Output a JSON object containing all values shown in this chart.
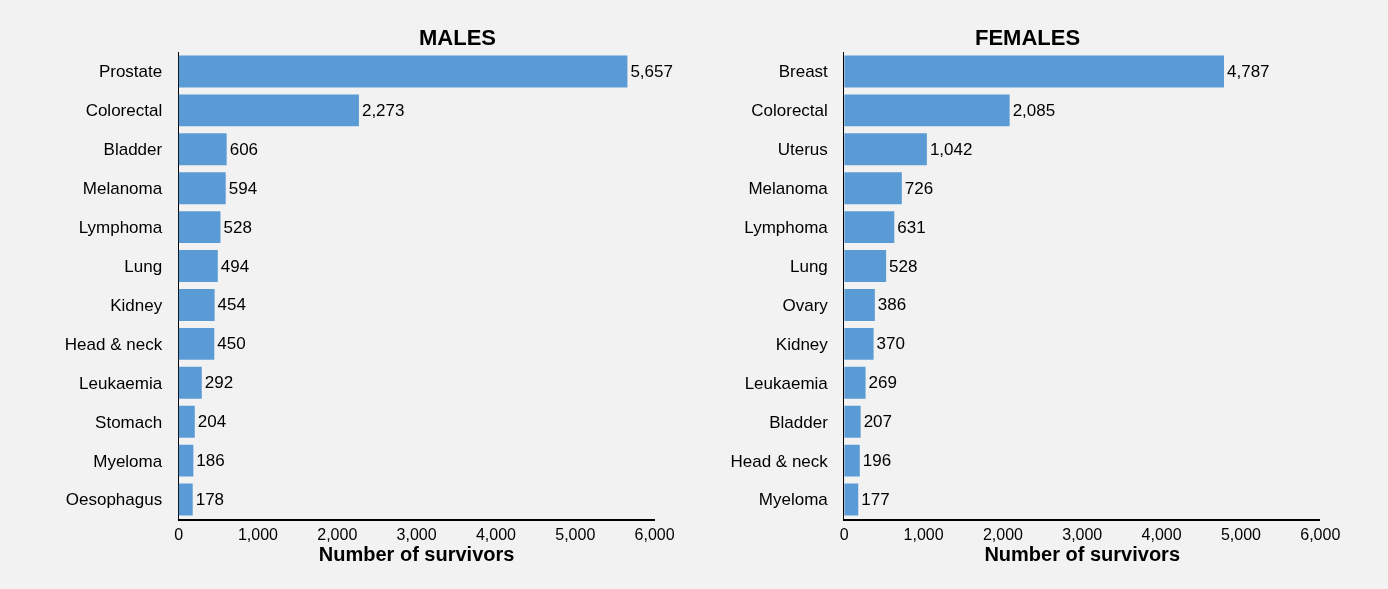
{
  "chart_data": [
    {
      "type": "bar",
      "orientation": "horizontal",
      "title": "MALES",
      "xlabel": "Number of survivors",
      "categories": [
        "Prostate",
        "Colorectal",
        "Bladder",
        "Melanoma",
        "Lymphoma",
        "Lung",
        "Kidney",
        "Head & neck",
        "Leukaemia",
        "Stomach",
        "Myeloma",
        "Oesophagus"
      ],
      "values": [
        5657,
        2273,
        606,
        594,
        528,
        494,
        454,
        450,
        292,
        204,
        186,
        178
      ],
      "value_labels": [
        "5,657",
        "2,273",
        "606",
        "594",
        "528",
        "494",
        "454",
        "450",
        "292",
        "204",
        "186",
        "178"
      ],
      "color": "#5b9bd5",
      "xlim": [
        0,
        6000
      ],
      "xticks": [
        0,
        {
          "value": 1000,
          "label": "1,000"
        },
        {
          "value": 2000,
          "label": "2,000"
        },
        {
          "value": 3000,
          "label": "3,000"
        },
        {
          "value": 4000,
          "label": "4,000"
        },
        {
          "value": 5000,
          "label": "5,000"
        },
        {
          "value": 6000,
          "label": "6,000"
        }
      ]
    },
    {
      "type": "bar",
      "orientation": "horizontal",
      "title": "FEMALES",
      "xlabel": "Number of survivors",
      "categories": [
        "Breast",
        "Colorectal",
        "Uterus",
        "Melanoma",
        "Lymphoma",
        "Lung",
        "Ovary",
        "Kidney",
        "Leukaemia",
        "Bladder",
        "Head & neck",
        "Myeloma"
      ],
      "values": [
        4787,
        2085,
        1042,
        726,
        631,
        528,
        386,
        370,
        269,
        207,
        196,
        177
      ],
      "value_labels": [
        "4,787",
        "2,085",
        "1,042",
        "726",
        "631",
        "528",
        "386",
        "370",
        "269",
        "207",
        "196",
        "177"
      ],
      "color": "#5b9bd5",
      "xlim": [
        0,
        6000
      ],
      "xticks": [
        0,
        {
          "value": 1000,
          "label": "1,000"
        },
        {
          "value": 2000,
          "label": "2,000"
        },
        {
          "value": 3000,
          "label": "3,000"
        },
        {
          "value": 4000,
          "label": "4,000"
        },
        {
          "value": 5000,
          "label": "5,000"
        },
        {
          "value": 6000,
          "label": "6,000"
        }
      ]
    }
  ]
}
